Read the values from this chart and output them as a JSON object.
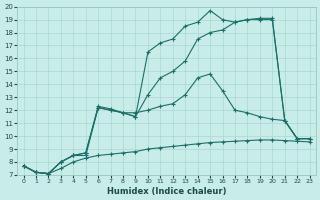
{
  "xlabel": "Humidex (Indice chaleur)",
  "ylabel": "",
  "xlim": [
    -0.5,
    23.5
  ],
  "ylim": [
    7,
    20
  ],
  "xticks": [
    0,
    1,
    2,
    3,
    4,
    5,
    6,
    7,
    8,
    9,
    10,
    11,
    12,
    13,
    14,
    15,
    16,
    17,
    18,
    19,
    20,
    21,
    22,
    23
  ],
  "yticks": [
    7,
    8,
    9,
    10,
    11,
    12,
    13,
    14,
    15,
    16,
    17,
    18,
    19,
    20
  ],
  "bg_color": "#c8ece8",
  "grid_color": "#a8d8d4",
  "line_color": "#1a7068",
  "lines": [
    {
      "x": [
        0,
        1,
        2,
        3,
        4,
        5,
        6,
        7,
        8,
        9,
        10,
        11,
        12,
        13,
        14,
        15,
        16,
        17,
        18,
        19,
        20,
        21,
        22,
        23
      ],
      "y": [
        7.7,
        7.2,
        7.1,
        7.5,
        8.0,
        8.3,
        8.5,
        8.6,
        8.7,
        8.8,
        9.0,
        9.1,
        9.2,
        9.3,
        9.4,
        9.5,
        9.55,
        9.6,
        9.65,
        9.7,
        9.7,
        9.65,
        9.6,
        9.55
      ]
    },
    {
      "x": [
        0,
        1,
        2,
        3,
        4,
        5,
        6,
        7,
        8,
        9,
        10,
        11,
        12,
        13,
        14,
        15,
        16,
        17,
        18,
        19,
        20,
        21,
        22,
        23
      ],
      "y": [
        7.7,
        7.2,
        7.1,
        8.0,
        8.5,
        8.5,
        12.2,
        12.0,
        11.8,
        11.8,
        12.0,
        12.3,
        12.5,
        13.2,
        14.5,
        14.8,
        13.5,
        12.0,
        11.8,
        11.5,
        11.3,
        11.2,
        9.8,
        9.8
      ]
    },
    {
      "x": [
        0,
        1,
        2,
        3,
        4,
        5,
        6,
        7,
        8,
        9,
        10,
        11,
        12,
        13,
        14,
        15,
        16,
        17,
        18,
        19,
        20,
        21,
        22,
        23
      ],
      "y": [
        7.7,
        7.2,
        7.1,
        8.0,
        8.5,
        8.7,
        12.2,
        12.0,
        11.8,
        11.5,
        13.2,
        14.5,
        15.0,
        15.8,
        17.5,
        18.0,
        18.2,
        18.8,
        19.0,
        19.0,
        19.0,
        11.2,
        9.8,
        9.8
      ]
    },
    {
      "x": [
        0,
        1,
        2,
        3,
        4,
        5,
        6,
        7,
        8,
        9,
        10,
        11,
        12,
        13,
        14,
        15,
        16,
        17,
        18,
        19,
        20,
        21,
        22,
        23
      ],
      "y": [
        7.7,
        7.2,
        7.1,
        8.0,
        8.5,
        8.7,
        12.3,
        12.1,
        11.8,
        11.5,
        16.5,
        17.2,
        17.5,
        18.5,
        18.8,
        19.7,
        19.0,
        18.8,
        19.0,
        19.1,
        19.1,
        11.2,
        9.8,
        9.8
      ]
    }
  ]
}
